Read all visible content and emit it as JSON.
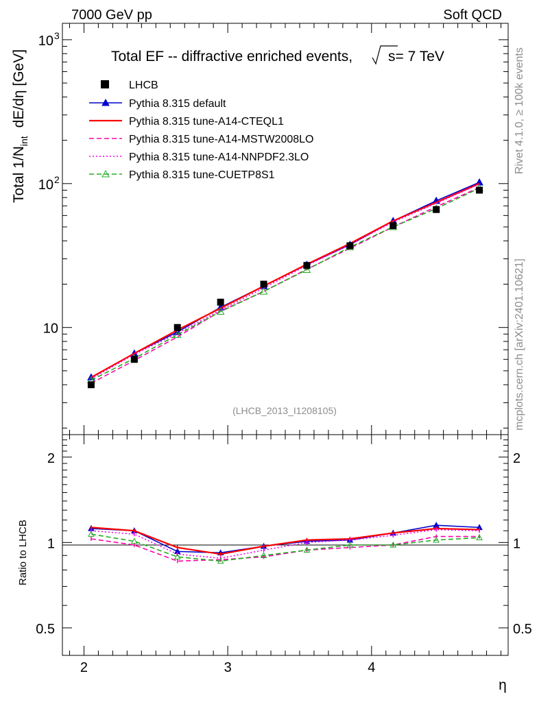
{
  "header": {
    "left": "7000 GeV pp",
    "right": "Soft QCD"
  },
  "side": {
    "rivet": "Rivet 4.1.0, ≥ 100k events",
    "mcplots": "mcplots.cern.ch [arXiv:2401.10621]"
  },
  "chart_data": {
    "type": "line",
    "title": "Total EF -- diffractive enriched events,",
    "title_energy": "s= 7 TeV",
    "watermark": "(LHCB_2013_I1208105)",
    "xlabel": "η",
    "ylabel_main": "Total 1/N",
    "ylabel_sub": "int",
    "ylabel_tail": "dE/dη [GeV]",
    "ylabel_ratio": "Ratio to LHCB",
    "xlim": [
      1.85,
      4.95
    ],
    "ylim": [
      1.8,
      1300
    ],
    "ylog": true,
    "ratio_ylim": [
      0.4,
      2.4
    ],
    "xticks": [
      "2",
      "3",
      "4"
    ],
    "yticks": [
      "10",
      "10",
      "10"
    ],
    "yticks_exp": [
      "3",
      "2",
      ""
    ],
    "ratio_ticks": [
      "2",
      "1",
      "0.5"
    ],
    "x": [
      2.05,
      2.35,
      2.65,
      2.95,
      3.25,
      3.55,
      3.85,
      4.15,
      4.45,
      4.75
    ],
    "data": {
      "name": "LHCB",
      "color": "#000000",
      "values": [
        4.0,
        6.0,
        10.0,
        15.0,
        20.0,
        27.0,
        37.0,
        51.0,
        66.0,
        90.0
      ]
    },
    "series": [
      {
        "name": "Pythia 8.315 default",
        "color": "#0000cc",
        "style": "solid",
        "marker": "triangle-filled",
        "values": [
          4.5,
          6.6,
          9.3,
          13.8,
          19.4,
          27.3,
          37.6,
          55.0,
          76.0,
          102.0
        ],
        "ratio": [
          1.12,
          1.1,
          0.93,
          0.92,
          0.97,
          1.01,
          1.02,
          1.08,
          1.15,
          1.13
        ]
      },
      {
        "name": "Pythia 8.315 tune-A14-CTEQL1",
        "color": "#ff0000",
        "style": "solid",
        "marker": "none",
        "values": [
          4.5,
          6.6,
          9.6,
          13.6,
          19.4,
          27.5,
          38.3,
          55.0,
          74.0,
          100.0
        ],
        "ratio": [
          1.13,
          1.1,
          0.96,
          0.91,
          0.97,
          1.02,
          1.03,
          1.08,
          1.12,
          1.11
        ]
      },
      {
        "name": "Pythia 8.315 tune-A14-MSTW2008LO",
        "color": "#ff00aa",
        "style": "dashed",
        "marker": "none",
        "values": [
          4.1,
          5.9,
          8.6,
          13.0,
          17.8,
          25.4,
          35.5,
          50.0,
          69.0,
          94.0
        ],
        "ratio": [
          1.03,
          0.98,
          0.86,
          0.87,
          0.89,
          0.94,
          0.96,
          0.98,
          1.05,
          1.05
        ]
      },
      {
        "name": "Pythia 8.315 tune-A14-NNPDF2.3LO",
        "color": "#ee00ee",
        "style": "dotted",
        "marker": "none",
        "values": [
          4.4,
          6.5,
          9.1,
          13.2,
          18.8,
          27.0,
          37.6,
          54.0,
          73.0,
          99.0
        ],
        "ratio": [
          1.1,
          1.07,
          0.91,
          0.88,
          0.94,
          1.0,
          1.02,
          1.06,
          1.11,
          1.1
        ]
      },
      {
        "name": "Pythia 8.315 tune-CUETP8S1",
        "color": "#22aa22",
        "style": "dashed",
        "marker": "triangle-open",
        "values": [
          4.3,
          6.1,
          8.9,
          12.9,
          17.8,
          25.2,
          36.2,
          50.0,
          67.0,
          93.0
        ],
        "ratio": [
          1.07,
          1.01,
          0.89,
          0.86,
          0.9,
          0.94,
          0.98,
          0.98,
          1.02,
          1.04
        ]
      }
    ]
  }
}
